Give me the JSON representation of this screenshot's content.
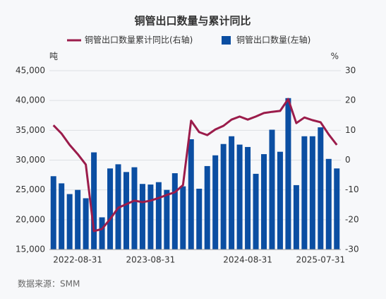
{
  "chart_data": {
    "type": "bar_line",
    "title": "铜管出口数量与累计同比",
    "y_unit": "吨",
    "y2_unit": "%",
    "source": "数据来源：SMM",
    "categories": [
      null,
      null,
      null,
      "2022-08-31",
      null,
      null,
      null,
      null,
      null,
      null,
      null,
      null,
      "2023-08-31",
      null,
      null,
      null,
      null,
      null,
      null,
      null,
      null,
      null,
      null,
      null,
      "2024-08-31",
      null,
      null,
      null,
      null,
      null,
      null,
      null,
      null,
      "2025-07-31",
      null,
      null
    ],
    "series": [
      {
        "name": "铜管出口数量累计同比(右轴)",
        "color": "#9b1c4b",
        "axis": "y2",
        "kind": "line",
        "values": [
          11.7,
          8.9,
          5.1,
          2.0,
          -1.5,
          -23.8,
          -23.1,
          -19.8,
          -16.0,
          -14.8,
          -13.6,
          -14.1,
          -13.6,
          -12.7,
          -11.7,
          -10.8,
          -8.4,
          13.2,
          9.4,
          8.4,
          10.3,
          11.5,
          13.6,
          14.6,
          13.6,
          14.6,
          15.8,
          16.2,
          16.5,
          20.5,
          12.4,
          14.3,
          13.4,
          12.7,
          8.6,
          5.1
        ]
      },
      {
        "name": "铜管出口数量(左轴)",
        "color": "#0b4ea2",
        "axis": "y",
        "kind": "bar",
        "values": [
          27300,
          26100,
          24300,
          25000,
          23600,
          31300,
          20400,
          28600,
          29300,
          28000,
          28800,
          26000,
          25900,
          26300,
          25000,
          27800,
          25600,
          33500,
          25200,
          29000,
          30800,
          32700,
          34000,
          32600,
          32200,
          27700,
          31000,
          35100,
          31400,
          40400,
          25800,
          34000,
          34000,
          35500,
          30200,
          28600
        ]
      }
    ],
    "ylim": [
      15000,
      45000
    ],
    "yticks": [
      {
        "value": 15000,
        "label": "15,000"
      },
      {
        "value": 20000,
        "label": "20,000"
      },
      {
        "value": 25000,
        "label": "25,000"
      },
      {
        "value": 30000,
        "label": "30,000"
      },
      {
        "value": 35000,
        "label": "35,000"
      },
      {
        "value": 40000,
        "label": "40,000"
      },
      {
        "value": 45000,
        "label": "45,000"
      }
    ],
    "y2lim": [
      -30,
      30
    ],
    "y2ticks": [
      -30,
      -20,
      -10,
      0,
      10,
      20,
      30
    ],
    "grid": true
  }
}
